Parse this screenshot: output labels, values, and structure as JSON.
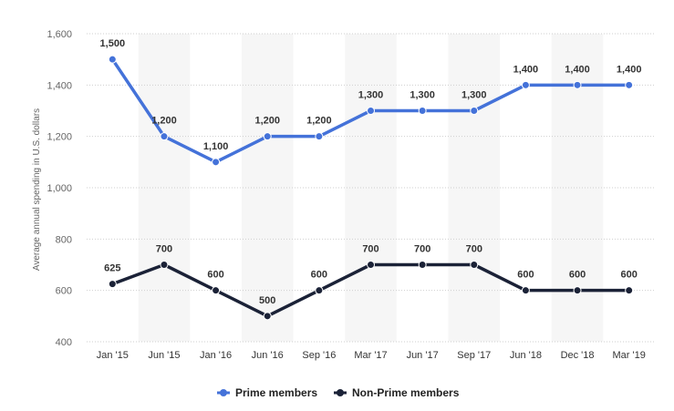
{
  "chart_data": {
    "type": "line",
    "title": "",
    "xlabel": "",
    "ylabel": "Average annual spending in U.S. dollars",
    "categories": [
      "Jan '15",
      "Jun '15",
      "Jan '16",
      "Jun '16",
      "Sep '16",
      "Mar '17",
      "Jun '17",
      "Sep '17",
      "Jun '18",
      "Dec '18",
      "Mar '19"
    ],
    "series": [
      {
        "name": "Prime members",
        "color": "#4472d9",
        "values": [
          1500,
          1200,
          1100,
          1200,
          1200,
          1300,
          1300,
          1300,
          1400,
          1400,
          1400
        ],
        "labels": [
          "1,500",
          "1,200",
          "1,100",
          "1,200",
          "1,200",
          "1,300",
          "1,300",
          "1,300",
          "1,400",
          "1,400",
          "1,400"
        ]
      },
      {
        "name": "Non-Prime members",
        "color": "#1b2237",
        "values": [
          625,
          700,
          600,
          500,
          600,
          700,
          700,
          700,
          600,
          600,
          600
        ],
        "labels": [
          "625",
          "700",
          "600",
          "500",
          "600",
          "700",
          "700",
          "700",
          "600",
          "600",
          "600"
        ]
      }
    ],
    "ylim": [
      400,
      1600
    ],
    "yticks": [
      400,
      600,
      800,
      1000,
      1200,
      1400,
      1600
    ],
    "ytick_labels": [
      "400",
      "600",
      "800",
      "1,000",
      "1,200",
      "1,400",
      "1,600"
    ],
    "grid": true,
    "legend_position": "bottom-center"
  }
}
